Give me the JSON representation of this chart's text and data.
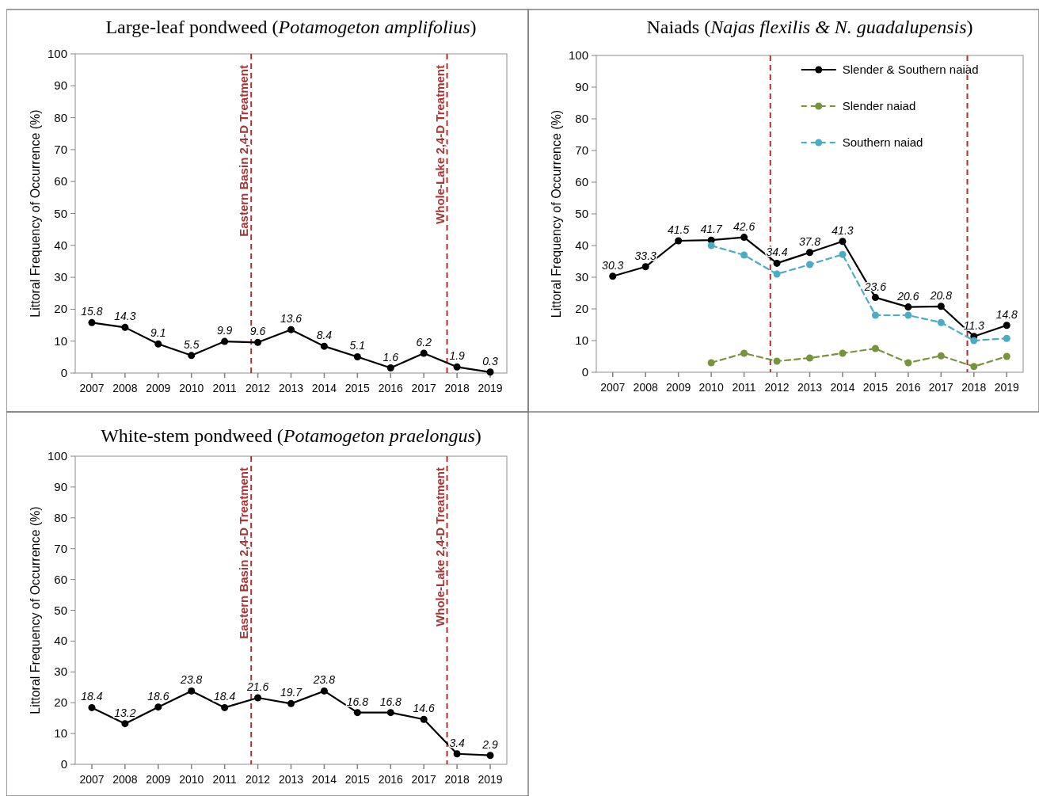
{
  "chart_data": [
    {
      "type": "line",
      "title": "Large-leaf pondweed (Potamogeton amplifolius)",
      "ylabel": "Littoral Frequency of Occurrence (%)",
      "x": [
        2007,
        2008,
        2009,
        2010,
        2011,
        2012,
        2013,
        2014,
        2015,
        2016,
        2017,
        2018,
        2019
      ],
      "xlim": [
        2006.5,
        2019.5
      ],
      "xticks": [
        2007,
        2008,
        2009,
        2010,
        2011,
        2012,
        2013,
        2014,
        2015,
        2016,
        2017,
        2018,
        2019
      ],
      "ylim": [
        0,
        100
      ],
      "yticks": [
        0,
        10,
        20,
        30,
        40,
        50,
        60,
        70,
        80,
        90,
        100
      ],
      "marker": "circle",
      "data_labels": true,
      "series": [
        {
          "color": "#000000",
          "values": [
            15.8,
            14.3,
            9.1,
            5.5,
            9.9,
            9.6,
            13.6,
            8.4,
            5.1,
            1.6,
            6.2,
            1.9,
            0.3
          ]
        }
      ],
      "ref_lines": [
        {
          "axis": "x",
          "value": 2011.8,
          "label": "Eastern Basin 2,4-D Treatment",
          "color": "#a93434",
          "line_style": "dashed"
        },
        {
          "axis": "x",
          "value": 2017.7,
          "label": "Whole-Lake 2,4-D Treatment",
          "color": "#a93434",
          "line_style": "dashed"
        }
      ]
    },
    {
      "type": "line",
      "title": "Naiads (Najas flexilis & N. guadalupensis)",
      "ylabel": "Littoral Frequency of Occurrence (%)",
      "x": [
        2007,
        2008,
        2009,
        2010,
        2011,
        2012,
        2013,
        2014,
        2015,
        2016,
        2017,
        2018,
        2019
      ],
      "xlim": [
        2006.5,
        2019.5
      ],
      "xticks": [
        2007,
        2008,
        2009,
        2010,
        2011,
        2012,
        2013,
        2014,
        2015,
        2016,
        2017,
        2018,
        2019
      ],
      "ylim": [
        0,
        100
      ],
      "yticks": [
        0,
        10,
        20,
        30,
        40,
        50,
        60,
        70,
        80,
        90,
        100
      ],
      "marker": "circle",
      "legend": "top right",
      "series": [
        {
          "name": "Slender & Southern naiad",
          "color": "#000000",
          "line_style": "solid",
          "values": [
            30.3,
            33.3,
            41.5,
            41.7,
            42.6,
            34.4,
            37.8,
            41.3,
            23.6,
            20.6,
            20.8,
            11.3,
            14.8
          ],
          "value_labels": [
            "30.3",
            "33.3",
            "41.5",
            "41.7",
            "42.6",
            "34.4",
            "37.8",
            "41.3",
            "23.6",
            "20.6",
            "20.8",
            "11.3",
            "14.8"
          ]
        },
        {
          "name": "Slender naiad",
          "color": "#77933c",
          "line_style": "dashed",
          "values": [
            null,
            null,
            null,
            3,
            6,
            3.5,
            4.5,
            6,
            7.5,
            3,
            5.2,
            1.8,
            5
          ]
        },
        {
          "name": "Southern naiad",
          "color": "#4bacc6",
          "line_style": "dashed",
          "values": [
            null,
            null,
            null,
            40,
            37,
            31,
            34,
            37.2,
            18,
            18,
            15.7,
            10,
            10.7
          ]
        }
      ],
      "ref_lines": [
        {
          "axis": "x",
          "value": 2011.8,
          "color": "#a93434",
          "line_style": "dashed"
        },
        {
          "axis": "x",
          "value": 2017.8,
          "color": "#a93434",
          "line_style": "dashed"
        }
      ]
    },
    {
      "type": "line",
      "title": "White-stem pondweed (Potamogeton praelongus)",
      "ylabel": "Littoral Frequency of Occurrence (%)",
      "x": [
        2007,
        2008,
        2009,
        2010,
        2011,
        2012,
        2013,
        2014,
        2015,
        2016,
        2017,
        2018,
        2019
      ],
      "xlim": [
        2006.5,
        2019.5
      ],
      "xticks": [
        2007,
        2008,
        2009,
        2010,
        2011,
        2012,
        2013,
        2014,
        2015,
        2016,
        2017,
        2018,
        2019
      ],
      "ylim": [
        0,
        100
      ],
      "yticks": [
        0,
        10,
        20,
        30,
        40,
        50,
        60,
        70,
        80,
        90,
        100
      ],
      "marker": "circle",
      "data_labels": true,
      "series": [
        {
          "color": "#000000",
          "values": [
            18.4,
            13.2,
            18.6,
            23.8,
            18.4,
            21.6,
            19.7,
            23.8,
            16.8,
            16.8,
            14.6,
            3.4,
            2.9
          ]
        }
      ],
      "ref_lines": [
        {
          "axis": "x",
          "value": 2011.8,
          "label": "Eastern Basin 2,4-D Treatment",
          "color": "#a93434",
          "line_style": "dashed"
        },
        {
          "axis": "x",
          "value": 2017.7,
          "label": "Whole-Lake 2,4-D Treatment",
          "color": "#a93434",
          "line_style": "dashed"
        }
      ]
    }
  ]
}
